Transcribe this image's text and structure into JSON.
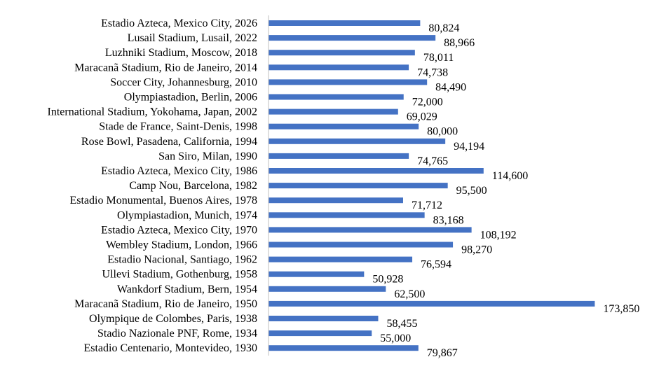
{
  "chart_data": {
    "type": "bar",
    "orientation": "horizontal",
    "categories": [
      "Estadio Azteca, Mexico City, 2026",
      "Lusail Stadium, Lusail, 2022",
      "Luzhniki Stadium, Moscow, 2018",
      "Maracanã Stadium, Rio de Janeiro, 2014",
      "Soccer City, Johannesburg, 2010",
      "Olympiastadion, Berlin, 2006",
      "International Stadium, Yokohama, Japan, 2002",
      "Stade de France, Saint-Denis, 1998",
      "Rose Bowl, Pasadena, California, 1994",
      "San Siro, Milan, 1990",
      "Estadio Azteca, Mexico City, 1986",
      "Camp Nou, Barcelona, 1982",
      "Estadio Monumental, Buenos Aires, 1978",
      "Olympiastadion, Munich, 1974",
      "Estadio Azteca, Mexico City, 1970",
      "Wembley Stadium, London, 1966",
      "Estadio Nacional, Santiago, 1962",
      "Ullevi Stadium, Gothenburg, 1958",
      "Wankdorf Stadium, Bern, 1954",
      "Maracanã Stadium, Rio de Janeiro, 1950",
      "Olympique de Colombes, Paris, 1938",
      "Stadio Nazionale PNF, Rome, 1934",
      "Estadio Centenario, Montevideo, 1930"
    ],
    "values": [
      80824,
      88966,
      78011,
      74738,
      84490,
      72000,
      69029,
      80000,
      94194,
      74765,
      114600,
      95500,
      71712,
      83168,
      108192,
      98270,
      76594,
      50928,
      62500,
      173850,
      58455,
      55000,
      79867
    ],
    "value_labels": [
      "80,824",
      "88,966",
      "78,011",
      "74,738",
      "84,490",
      "72,000",
      "69,029",
      "80,000",
      "94,194",
      "74,765",
      "114,600",
      "95,500",
      "71,712",
      "83,168",
      "108,192",
      "98,270",
      "76,594",
      "50,928",
      "62,500",
      "173,850",
      "58,455",
      "55,000",
      "79,867"
    ],
    "xlim": [
      0,
      180000
    ],
    "bar_color": "#4472C4",
    "axis_color": "#BFBFBF",
    "grid": false,
    "legend": "none"
  }
}
